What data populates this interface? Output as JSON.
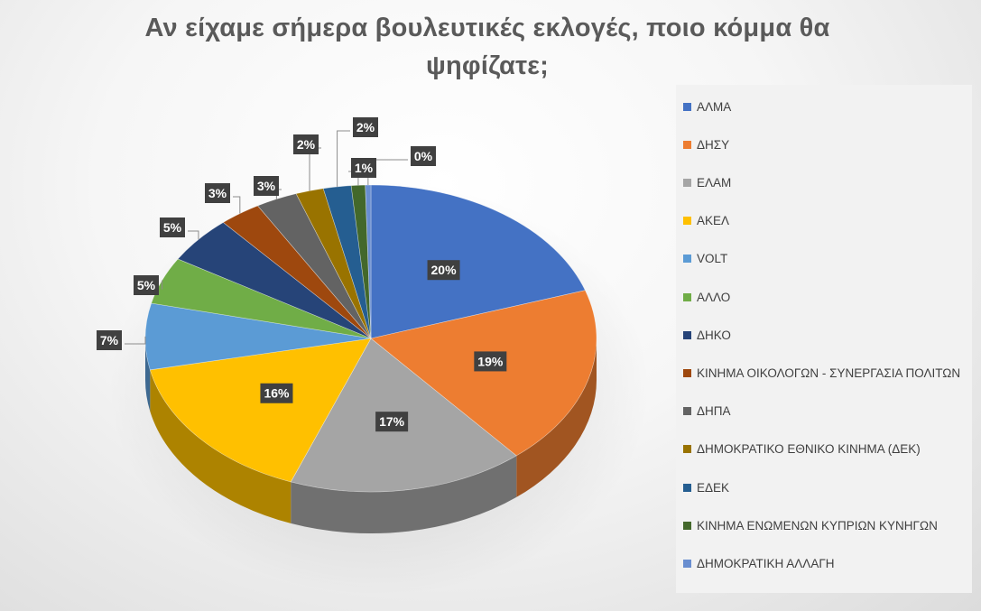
{
  "chart_data": {
    "type": "pie",
    "title": "Αν είχαμε σήμερα βουλευτικές εκλογές, ποιο κόμμα θα ψηφίζατε;",
    "legend_position": "right",
    "slices": [
      {
        "name": "ΑΛΜΑ",
        "value": 20,
        "label": "20%",
        "color": "#4472C4"
      },
      {
        "name": "ΔΗΣΥ",
        "value": 19,
        "label": "19%",
        "color": "#ED7D31"
      },
      {
        "name": "ΕΛΑΜ",
        "value": 17,
        "label": "17%",
        "color": "#A5A5A5"
      },
      {
        "name": "ΑΚΕΛ",
        "value": 16,
        "label": "16%",
        "color": "#FFC000"
      },
      {
        "name": "VOLT",
        "value": 7,
        "label": "7%",
        "color": "#5B9BD5"
      },
      {
        "name": "ΑΛΛΟ",
        "value": 5,
        "label": "5%",
        "color": "#70AD47"
      },
      {
        "name": "ΔΗΚΟ",
        "value": 5,
        "label": "5%",
        "color": "#264478"
      },
      {
        "name": "ΚΙΝΗΜΑ ΟΙΚΟΛΟΓΩΝ - ΣΥΝΕΡΓΑΣΙΑ ΠΟΛΙΤΩΝ",
        "value": 3,
        "label": "3%",
        "color": "#9E480E"
      },
      {
        "name": "ΔΗΠΑ",
        "value": 3,
        "label": "3%",
        "color": "#636363"
      },
      {
        "name": "ΔΗΜΟΚΡΑΤΙΚΟ ΕΘΝΙΚΟ ΚΙΝΗΜΑ (ΔΕΚ)",
        "value": 2,
        "label": "2%",
        "color": "#997300"
      },
      {
        "name": "ΕΔΕΚ",
        "value": 2,
        "label": "2%",
        "color": "#255E91"
      },
      {
        "name": "ΚΙΝΗΜΑ ΕΝΩΜΕΝΩΝ ΚΥΠΡΙΩΝ ΚΥΝΗΓΩΝ",
        "value": 1,
        "label": "1%",
        "color": "#43682B"
      },
      {
        "name": "ΔΗΜΟΚΡΑΤΙΚΗ ΑΛΛΑΓΗ",
        "value": 0.4,
        "label": "0%",
        "color": "#698ED0"
      }
    ]
  }
}
